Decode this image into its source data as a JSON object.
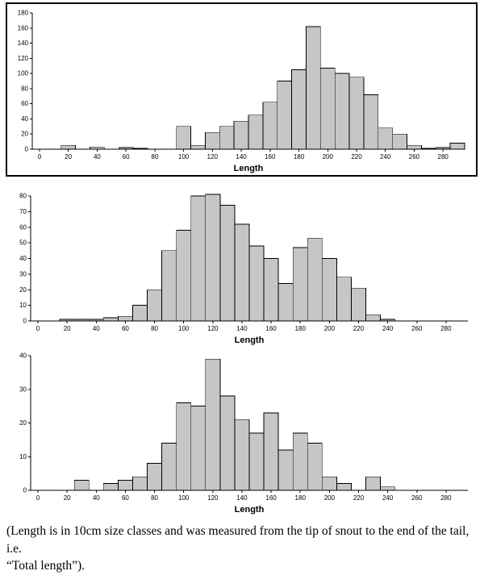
{
  "colors": {
    "bar_fill": "#c6c6c6",
    "bar_stroke": "#000000",
    "axis": "#000000",
    "frame": "#000000",
    "background": "#ffffff"
  },
  "caption": {
    "line1": "(Length is in 10cm size classes and was measured from the tip of snout to the end of the tail, i.e.",
    "line2": "“Total length”)."
  },
  "chart_data": [
    {
      "type": "bar",
      "title": "",
      "xlabel": "Length",
      "ylabel": "",
      "ylim": [
        0,
        180
      ],
      "ytick_step": 20,
      "xlabel_every": 20,
      "framed": true,
      "legend": "none",
      "grid": false,
      "categories": [
        0,
        10,
        20,
        30,
        40,
        50,
        60,
        70,
        80,
        90,
        100,
        110,
        120,
        130,
        140,
        150,
        160,
        170,
        180,
        190,
        200,
        210,
        220,
        230,
        240,
        250,
        260,
        270,
        280,
        290
      ],
      "values": [
        0,
        0,
        5,
        0,
        3,
        0,
        2,
        1,
        0,
        0,
        30,
        5,
        22,
        30,
        37,
        45,
        62,
        90,
        105,
        162,
        107,
        100,
        95,
        72,
        28,
        20,
        5,
        1,
        2,
        8
      ]
    },
    {
      "type": "bar",
      "title": "",
      "xlabel": "Length",
      "ylabel": "",
      "ylim": [
        0,
        80
      ],
      "ytick_step": 10,
      "xlabel_every": 20,
      "framed": false,
      "legend": "none",
      "grid": false,
      "categories": [
        0,
        10,
        20,
        30,
        40,
        50,
        60,
        70,
        80,
        90,
        100,
        110,
        120,
        130,
        140,
        150,
        160,
        170,
        180,
        190,
        200,
        210,
        220,
        230,
        240,
        250,
        260,
        270,
        280,
        290
      ],
      "values": [
        0,
        0,
        1,
        1,
        1,
        2,
        3,
        10,
        20,
        45,
        58,
        80,
        81,
        74,
        62,
        48,
        40,
        24,
        47,
        53,
        40,
        28,
        21,
        4,
        1,
        0,
        0,
        0,
        0,
        0
      ]
    },
    {
      "type": "bar",
      "title": "",
      "xlabel": "Length",
      "ylabel": "",
      "ylim": [
        0,
        40
      ],
      "ytick_step": 10,
      "xlabel_every": 20,
      "framed": false,
      "legend": "none",
      "grid": false,
      "categories": [
        0,
        10,
        20,
        30,
        40,
        50,
        60,
        70,
        80,
        90,
        100,
        110,
        120,
        130,
        140,
        150,
        160,
        170,
        180,
        190,
        200,
        210,
        220,
        230,
        240,
        250,
        260,
        270,
        280,
        290
      ],
      "values": [
        0,
        0,
        0,
        3,
        0,
        2,
        3,
        4,
        8,
        14,
        26,
        25,
        39,
        28,
        21,
        17,
        23,
        12,
        17,
        14,
        4,
        2,
        0,
        4,
        1,
        0,
        0,
        0,
        0,
        0
      ]
    }
  ]
}
